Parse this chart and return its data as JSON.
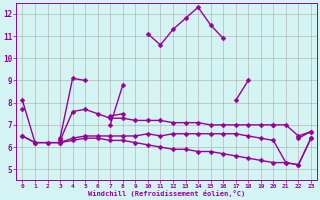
{
  "x": [
    0,
    1,
    2,
    3,
    4,
    5,
    6,
    7,
    8,
    9,
    10,
    11,
    12,
    13,
    14,
    15,
    16,
    17,
    18,
    19,
    20,
    21,
    22,
    23
  ],
  "line1": [
    8.1,
    6.2,
    null,
    6.4,
    9.1,
    9.0,
    null,
    7.0,
    8.8,
    null,
    11.1,
    10.6,
    11.3,
    11.8,
    12.3,
    11.5,
    10.9,
    null,
    null,
    null,
    null,
    null,
    6.4,
    6.7
  ],
  "line2": [
    null,
    null,
    null,
    6.3,
    null,
    null,
    null,
    7.4,
    7.5,
    null,
    null,
    null,
    null,
    null,
    null,
    null,
    null,
    8.1,
    9.0,
    null,
    7.0,
    null,
    null,
    null
  ],
  "line3": [
    7.7,
    null,
    null,
    6.3,
    7.6,
    7.7,
    7.5,
    7.3,
    7.3,
    7.2,
    7.2,
    7.2,
    7.1,
    7.1,
    7.1,
    7.0,
    7.0,
    7.0,
    7.0,
    7.0,
    7.0,
    7.0,
    6.5,
    6.7
  ],
  "line4": [
    6.5,
    6.2,
    6.2,
    6.2,
    6.4,
    6.5,
    6.5,
    6.5,
    6.5,
    6.5,
    6.6,
    6.5,
    6.6,
    6.6,
    6.6,
    6.6,
    6.6,
    6.6,
    6.5,
    6.4,
    6.3,
    5.3,
    5.2,
    6.4
  ],
  "line5": [
    6.5,
    6.2,
    6.2,
    6.2,
    6.3,
    6.4,
    6.4,
    6.3,
    6.3,
    6.2,
    6.1,
    6.0,
    5.9,
    5.9,
    5.8,
    5.8,
    5.7,
    5.6,
    5.5,
    5.4,
    5.3,
    5.3,
    5.2,
    6.4
  ],
  "line_color": "#990099",
  "bg_color": "#d4f4f4",
  "grid_color": "#aaaaaa",
  "xlabel": "Windchill (Refroidissement éolien,°C)",
  "ylim": [
    4.5,
    12.5
  ],
  "xlim": [
    -0.5,
    23.5
  ],
  "yticks": [
    5,
    6,
    7,
    8,
    9,
    10,
    11,
    12
  ],
  "xticks": [
    0,
    1,
    2,
    3,
    4,
    5,
    6,
    7,
    8,
    9,
    10,
    11,
    12,
    13,
    14,
    15,
    16,
    17,
    18,
    19,
    20,
    21,
    22,
    23
  ],
  "markersize": 2.5,
  "linewidth": 1.0
}
